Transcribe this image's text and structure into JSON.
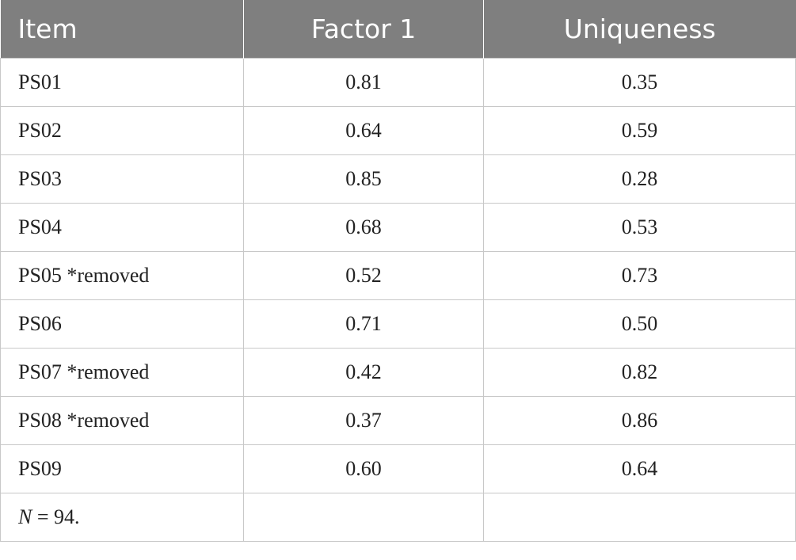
{
  "table": {
    "headers": [
      "Item",
      "Factor 1",
      "Uniqueness"
    ],
    "rows": [
      {
        "item": "PS01",
        "factor1": "0.81",
        "uniqueness": "0.35"
      },
      {
        "item": "PS02",
        "factor1": "0.64",
        "uniqueness": "0.59"
      },
      {
        "item": "PS03",
        "factor1": "0.85",
        "uniqueness": "0.28"
      },
      {
        "item": "PS04",
        "factor1": "0.68",
        "uniqueness": "0.53"
      },
      {
        "item": "PS05 *removed",
        "factor1": "0.52",
        "uniqueness": "0.73"
      },
      {
        "item": "PS06",
        "factor1": "0.71",
        "uniqueness": "0.50"
      },
      {
        "item": "PS07 *removed",
        "factor1": "0.42",
        "uniqueness": "0.82"
      },
      {
        "item": "PS08 *removed",
        "factor1": "0.37",
        "uniqueness": "0.86"
      },
      {
        "item": "PS09",
        "factor1": "0.60",
        "uniqueness": "0.64"
      }
    ],
    "footnote": {
      "symbol": "N",
      "text": " = 94."
    }
  }
}
